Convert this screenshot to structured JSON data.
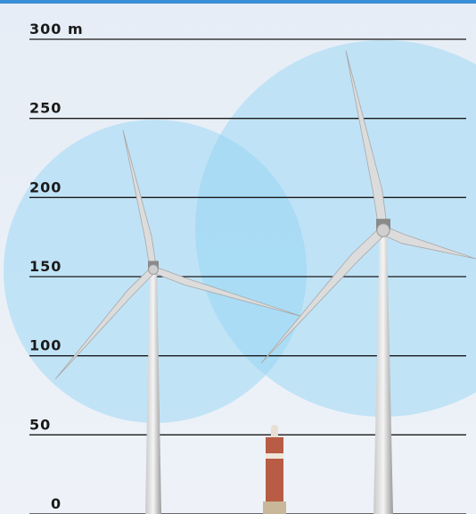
{
  "chart_data": {
    "type": "scale",
    "ylim": [
      0,
      300
    ],
    "yticks": [
      0,
      50,
      100,
      150,
      200,
      250,
      {
        "value": 300,
        "label": "300 m"
      }
    ]
  }
}
